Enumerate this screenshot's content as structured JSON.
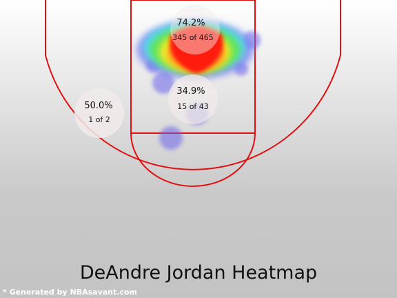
{
  "title": "DeAndre Jordan Heatmap",
  "footer": "* Generated by NBAsavant.com",
  "colors": {
    "court_line": "#e01010",
    "zone_circle": "#f2eaea",
    "cold_blob": "#6a62ea"
  },
  "chart_data": {
    "type": "heatmap",
    "title": "DeAndre Jordan Heatmap",
    "zones": [
      {
        "zone": "restricted-area",
        "pct_label": "74.2%",
        "count_label": "345 of 465",
        "made": 345,
        "attempts": 465,
        "fg_pct": 74.2
      },
      {
        "zone": "paint-non-ra",
        "pct_label": "34.9%",
        "count_label": "15 of 43",
        "made": 15,
        "attempts": 43,
        "fg_pct": 34.9
      },
      {
        "zone": "left-mid-range",
        "pct_label": "50.0%",
        "count_label": "1 of 2",
        "made": 1,
        "attempts": 2,
        "fg_pct": 50.0
      }
    ],
    "grid": false
  }
}
